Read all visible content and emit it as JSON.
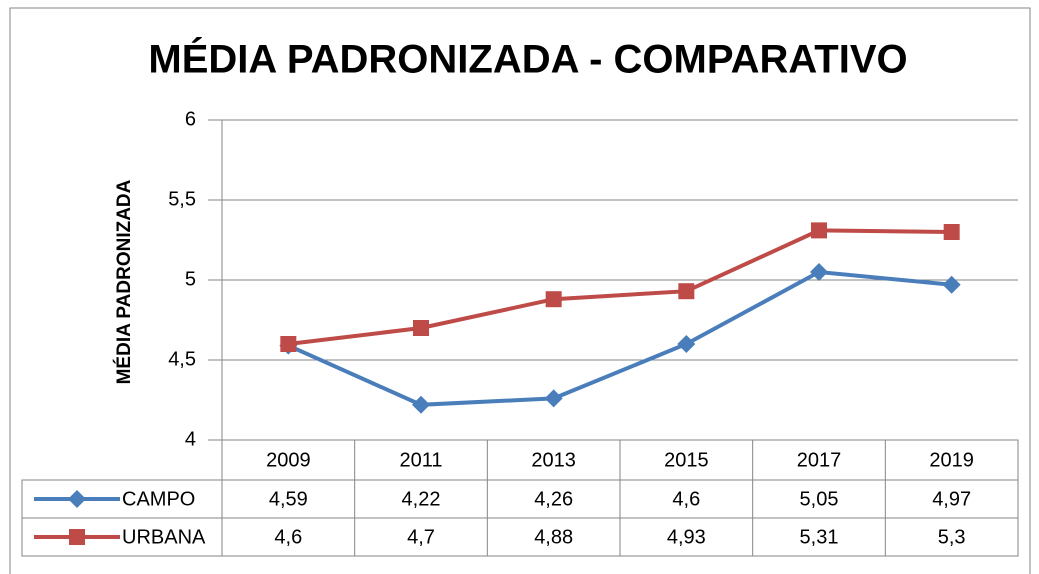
{
  "chart_data": {
    "type": "line",
    "title": "MÉDIA PADRONIZADA - COMPARATIVO",
    "y_label": "MÉDIA PADRONIZADA",
    "categories": [
      "2009",
      "2011",
      "2013",
      "2015",
      "2017",
      "2019"
    ],
    "series": [
      {
        "name": "CAMPO",
        "color": "#4a7ebb",
        "marker": "diamond",
        "values": [
          4.59,
          4.22,
          4.26,
          4.6,
          5.05,
          4.97
        ],
        "value_labels": [
          "4,59",
          "4,22",
          "4,26",
          "4,6",
          "5,05",
          "4,97"
        ]
      },
      {
        "name": "URBANA",
        "color": "#be4b48",
        "marker": "square",
        "values": [
          4.6,
          4.7,
          4.88,
          4.93,
          5.31,
          5.3
        ],
        "value_labels": [
          "4,6",
          "4,7",
          "4,88",
          "4,93",
          "5,31",
          "5,3"
        ]
      }
    ],
    "ylim": [
      4,
      6
    ],
    "yticks": [
      4,
      {
        "value": 4.5,
        "label": "4,5"
      },
      5,
      {
        "value": 5.5,
        "label": "5,5"
      },
      6
    ],
    "grid": true
  }
}
